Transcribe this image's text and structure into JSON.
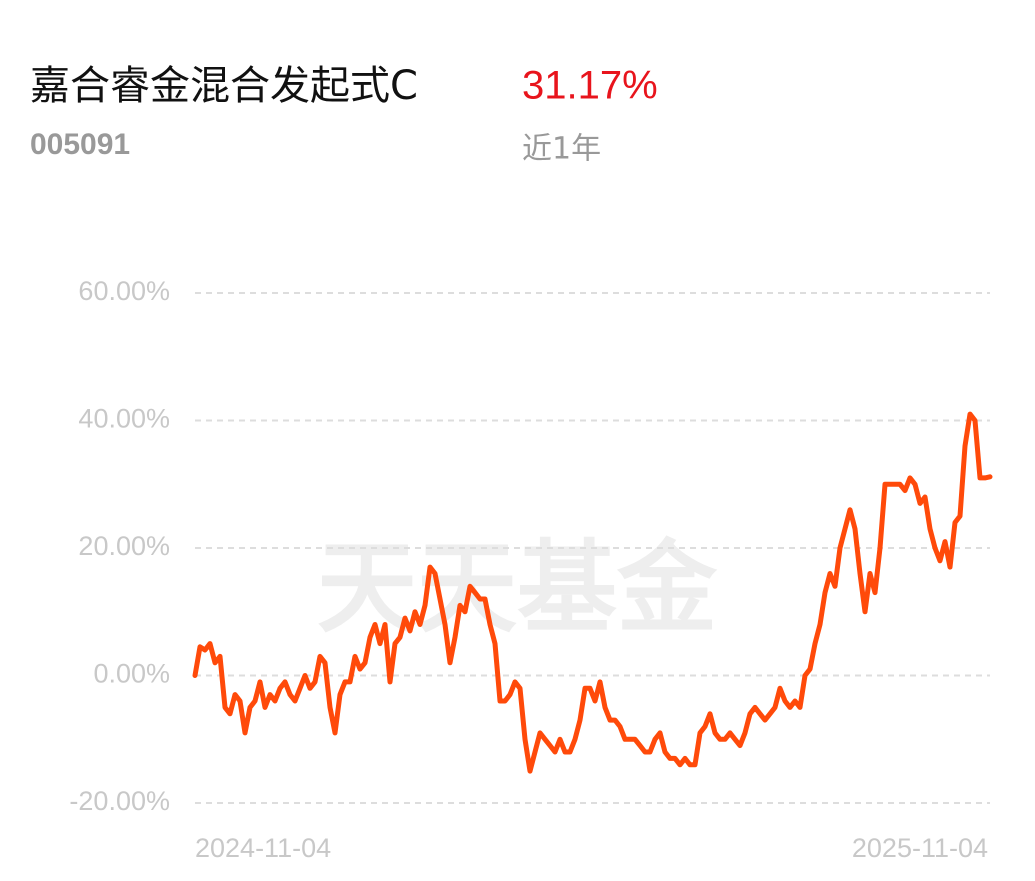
{
  "chart_data": {
    "type": "line",
    "title": "嘉合睿金混合发起式C",
    "code": "005091",
    "return_label": "31.17%",
    "period": "近1年",
    "watermark": "天天基金",
    "color": "#ff4a0a",
    "categories": [
      "2024-11-04",
      null,
      null,
      null,
      null,
      null,
      null,
      null,
      null,
      null,
      null,
      null,
      null,
      null,
      null,
      null,
      null,
      null,
      null,
      null,
      null,
      null,
      null,
      null,
      null,
      null,
      null,
      null,
      null,
      null,
      null,
      null,
      null,
      null,
      null,
      null,
      null,
      null,
      null,
      null,
      null,
      null,
      null,
      null,
      null,
      null,
      null,
      null,
      null,
      null,
      null,
      null,
      null,
      null,
      null,
      null,
      null,
      null,
      null,
      null,
      null,
      null,
      null,
      null,
      null,
      null,
      null,
      null,
      null,
      null,
      null,
      null,
      null,
      null,
      null,
      null,
      null,
      null,
      null,
      null,
      null,
      null,
      null,
      null,
      null,
      null,
      null,
      null,
      null,
      null,
      null,
      null,
      null,
      null,
      null,
      null,
      null,
      null,
      null,
      null,
      null,
      null,
      null,
      null,
      null,
      null,
      null,
      null,
      null,
      null,
      null,
      null,
      null,
      null,
      null,
      null,
      null,
      null,
      null,
      null,
      null,
      null,
      null,
      null,
      null,
      null,
      null,
      null,
      null,
      null,
      null,
      null,
      null,
      null,
      null,
      null,
      null,
      null,
      null,
      null,
      null,
      null,
      null,
      null,
      null,
      null,
      null,
      null,
      null,
      null,
      null,
      null,
      null,
      null,
      null,
      null,
      null,
      null,
      null,
      "2025-11-04"
    ],
    "values": [
      0,
      4.5,
      4,
      5,
      2,
      3,
      -5,
      -6,
      -3,
      -4,
      -9,
      -5,
      -4,
      -1,
      -5,
      -3,
      -4,
      -2,
      -1,
      -3,
      -4,
      -2,
      0,
      -2,
      -1,
      3,
      2,
      -5,
      -9,
      -3,
      -1,
      -1,
      3,
      1,
      2,
      6,
      8,
      5,
      8,
      -1,
      5,
      6,
      9,
      7,
      10,
      8,
      11,
      17,
      16,
      12,
      8,
      2,
      6,
      11,
      10,
      14,
      13,
      12,
      12,
      8,
      5,
      -4,
      -4,
      -3,
      -1,
      -2,
      -10,
      -15,
      -12,
      -9,
      -10,
      -11,
      -12,
      -10,
      -12,
      -12,
      -10,
      -7,
      -2,
      -2,
      -4,
      -1,
      -5,
      -7,
      -7,
      -8,
      -10,
      -10,
      -10,
      -11,
      -12,
      -12,
      -10,
      -9,
      -12,
      -13,
      -13,
      -14,
      -13,
      -14,
      -14,
      -9,
      -8,
      -6,
      -9,
      -10,
      -10,
      -9,
      -10,
      -11,
      -9,
      -6,
      -5,
      -6,
      -7,
      -6,
      -5,
      -2,
      -4,
      -5,
      -4,
      -5,
      0,
      1,
      5,
      8,
      13,
      16,
      14,
      20,
      23,
      26,
      23,
      16,
      10,
      16,
      13,
      20,
      30,
      30,
      30,
      30,
      29,
      31,
      30,
      27,
      28,
      23,
      20,
      18,
      21,
      17,
      24,
      25,
      36,
      41,
      40,
      31,
      31,
      31.17
    ],
    "ylim": [
      -20,
      60
    ],
    "yticks": [
      {
        "value": -20,
        "label": "-20.00%"
      },
      {
        "value": 0,
        "label": "0.00%"
      },
      {
        "value": 20,
        "label": "20.00%"
      },
      {
        "value": 40,
        "label": "40.00%"
      },
      {
        "value": 60,
        "label": "60.00%"
      }
    ],
    "grid": true
  }
}
